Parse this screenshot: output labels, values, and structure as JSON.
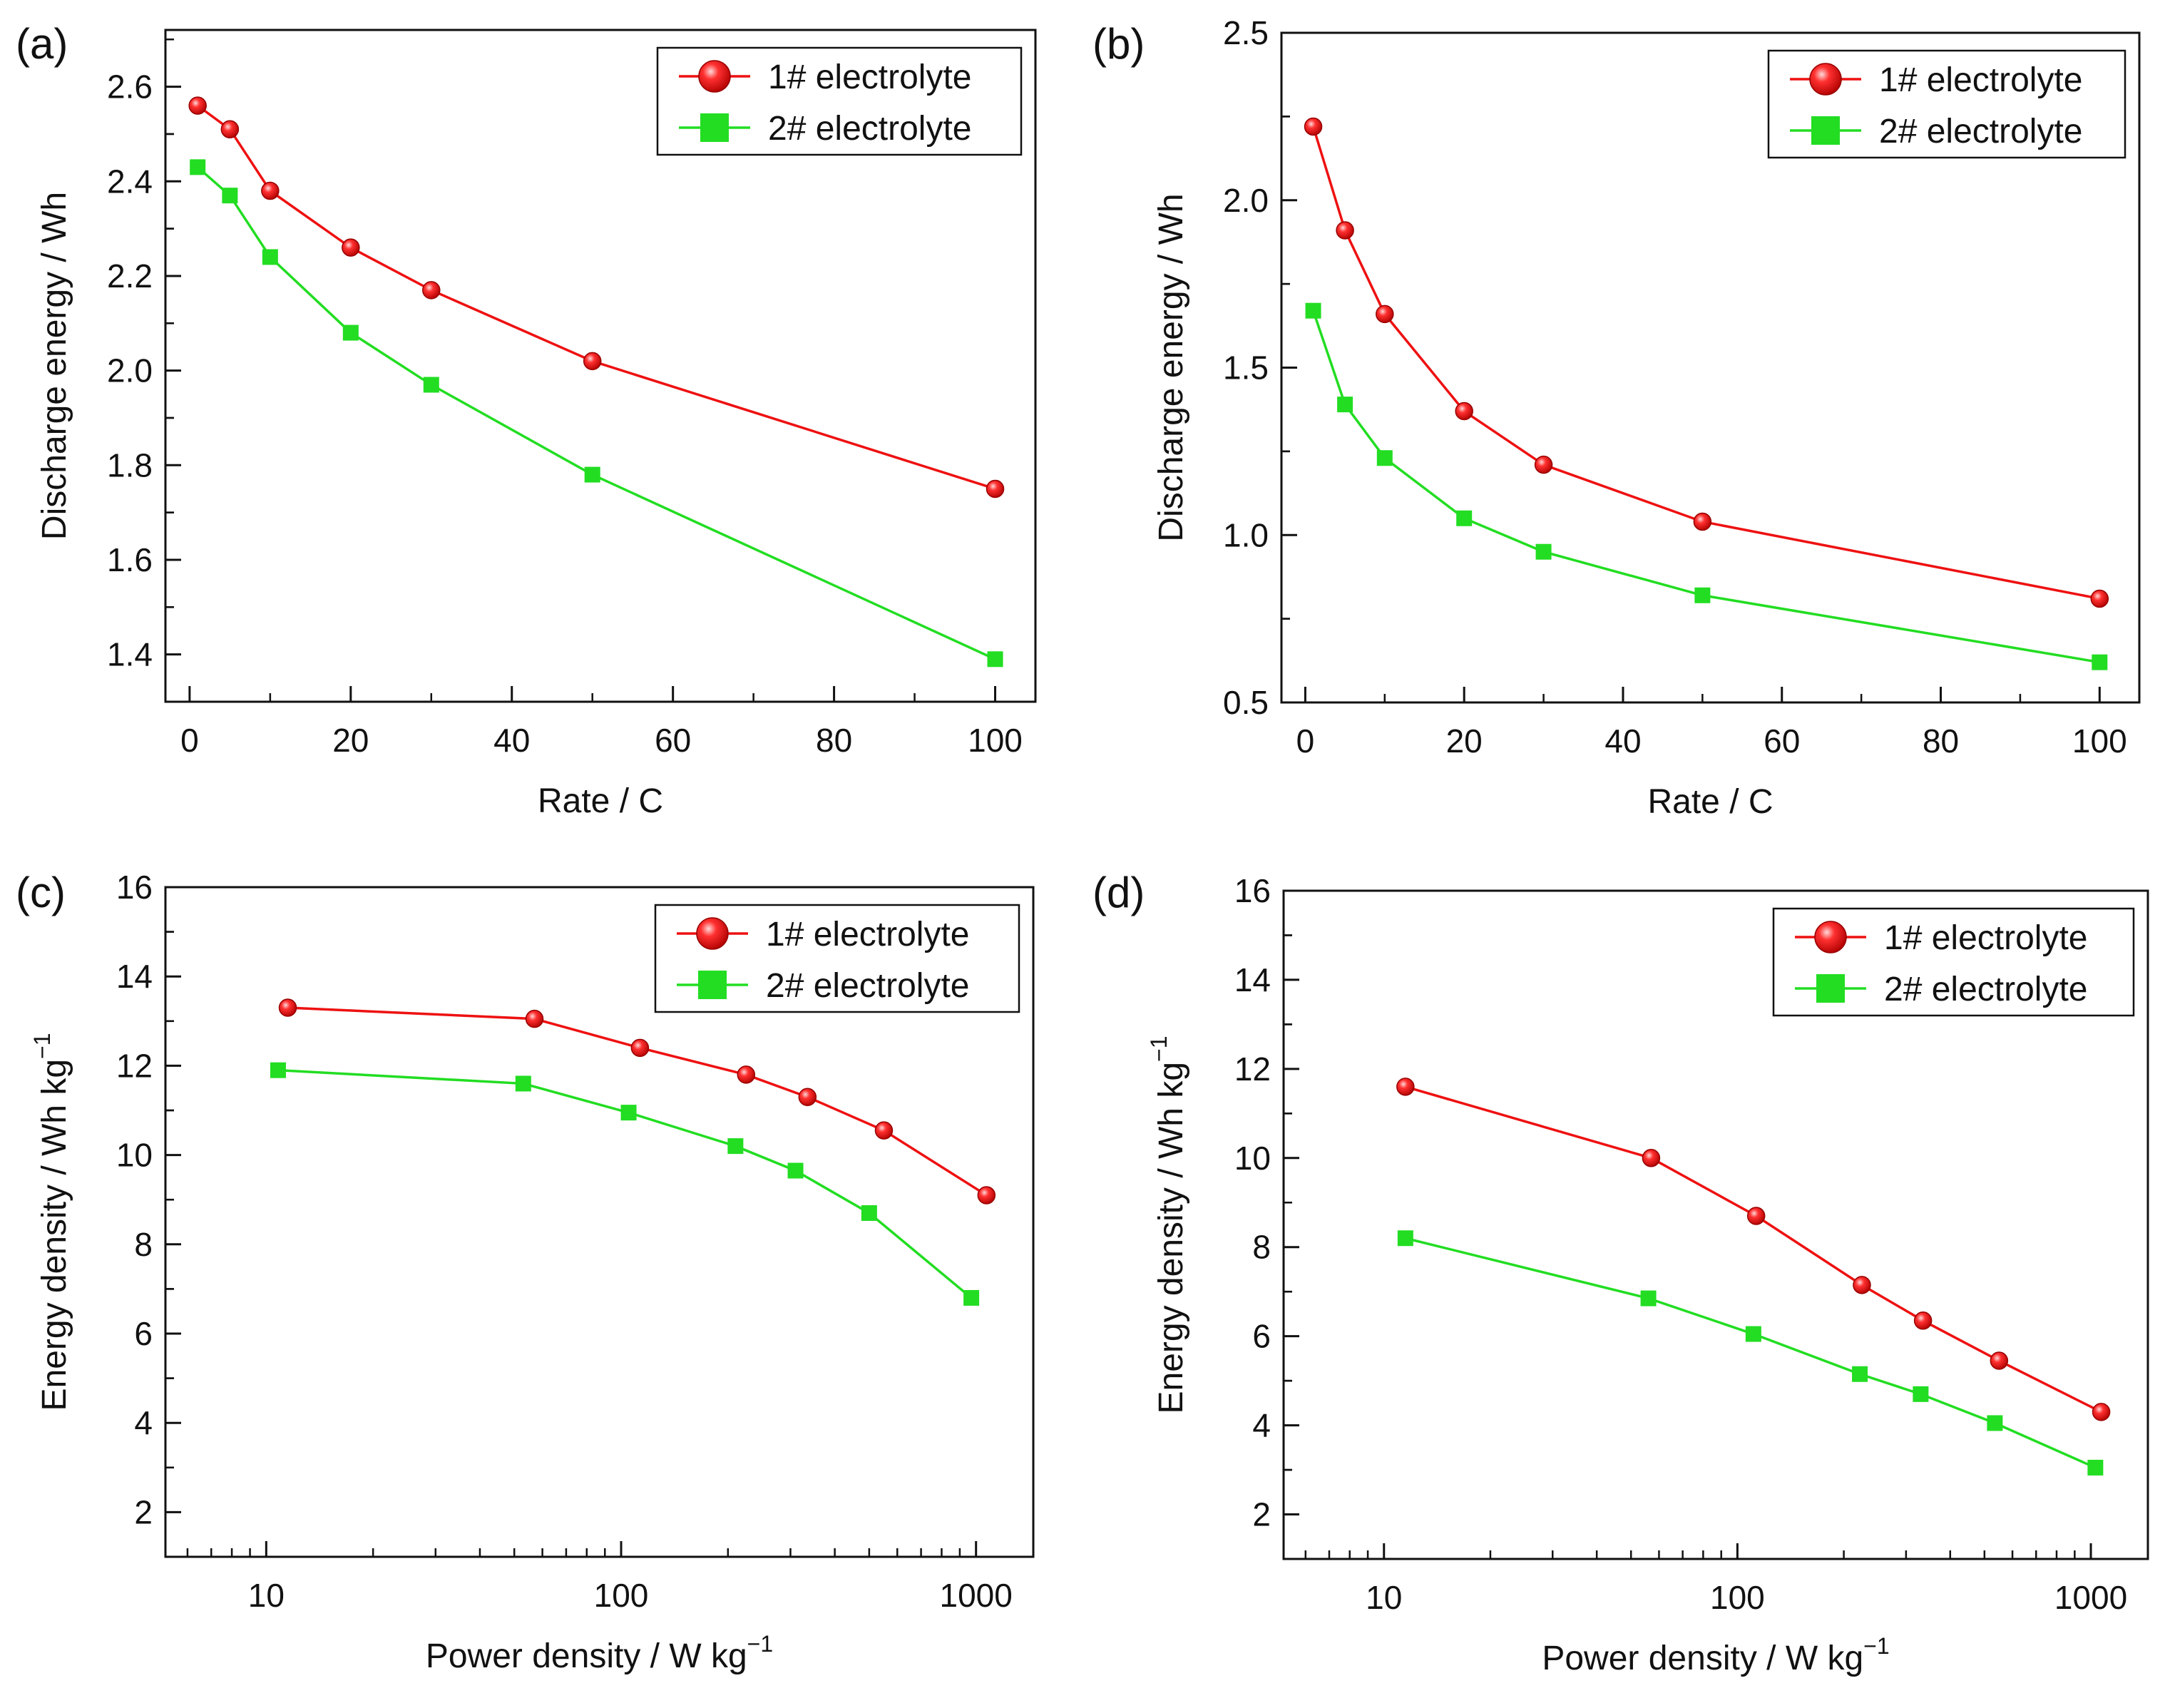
{
  "colors": {
    "series1": "#ee1111",
    "series2": "#22dd22",
    "axis": "#111111"
  },
  "chart_data": [
    {
      "panel_label": "(a)",
      "type": "line",
      "xscale": "linear",
      "xlabel": "Rate / C",
      "ylabel": "Discharge energy / Wh",
      "xlim": [
        -3,
        105
      ],
      "ylim": [
        1.3,
        2.72
      ],
      "xticks": [
        0,
        20,
        40,
        60,
        80,
        100
      ],
      "xtick_labels": [
        "0",
        "20",
        "40",
        "60",
        "80",
        "100"
      ],
      "yticks": [
        1.4,
        1.6,
        1.8,
        2.0,
        2.2,
        2.4,
        2.6
      ],
      "ytick_labels": [
        "1.4",
        "1.6",
        "1.8",
        "2.0",
        "2.2",
        "2.4",
        "2.6"
      ],
      "legend_position": "top-right",
      "series": [
        {
          "name": "1# electrolyte",
          "marker": "sphere",
          "x": [
            1,
            5,
            10,
            20,
            30,
            50,
            100
          ],
          "y": [
            2.56,
            2.51,
            2.38,
            2.26,
            2.17,
            2.02,
            1.75
          ]
        },
        {
          "name": "2# electrolyte",
          "marker": "square",
          "x": [
            1,
            5,
            10,
            20,
            30,
            50,
            100
          ],
          "y": [
            2.43,
            2.37,
            2.24,
            2.08,
            1.97,
            1.78,
            1.39
          ]
        }
      ]
    },
    {
      "panel_label": "(b)",
      "type": "line",
      "xscale": "linear",
      "xlabel": "Rate / C",
      "ylabel": "Discharge energy / Wh",
      "xlim": [
        -3,
        105
      ],
      "ylim": [
        0.5,
        2.5
      ],
      "xticks": [
        0,
        20,
        40,
        60,
        80,
        100
      ],
      "xtick_labels": [
        "0",
        "20",
        "40",
        "60",
        "80",
        "100"
      ],
      "yticks": [
        0.5,
        1.0,
        1.5,
        2.0,
        2.5
      ],
      "ytick_labels": [
        "0.5",
        "1.0",
        "1.5",
        "2.0",
        "2.5"
      ],
      "legend_position": "top-right",
      "series": [
        {
          "name": "1# electrolyte",
          "marker": "sphere",
          "x": [
            1,
            5,
            10,
            20,
            30,
            50,
            100
          ],
          "y": [
            2.22,
            1.91,
            1.66,
            1.37,
            1.21,
            1.04,
            0.81
          ]
        },
        {
          "name": "2# electrolyte",
          "marker": "square",
          "x": [
            1,
            5,
            10,
            20,
            30,
            50,
            100
          ],
          "y": [
            1.67,
            1.39,
            1.23,
            1.05,
            0.95,
            0.82,
            0.62
          ]
        }
      ]
    },
    {
      "panel_label": "(c)",
      "type": "line",
      "xscale": "log",
      "xlabel": "Power density / W kg",
      "xlabel_sup": "−1",
      "ylabel": "Energy density / Wh kg",
      "ylabel_sup": "−1",
      "xlim": [
        5.2,
        1450
      ],
      "ylim": [
        1,
        16
      ],
      "xticks": [
        10,
        100,
        1000
      ],
      "xtick_labels": [
        "10",
        "100",
        "1000"
      ],
      "yticks": [
        2,
        4,
        6,
        8,
        10,
        12,
        14,
        16
      ],
      "ytick_labels": [
        "2",
        "4",
        "6",
        "8",
        "10",
        "12",
        "14",
        "16"
      ],
      "legend_position": "top-right",
      "series": [
        {
          "name": "1# electrolyte",
          "marker": "sphere",
          "x": [
            11.5,
            57,
            113,
            225,
            335,
            550,
            1070
          ],
          "y": [
            13.3,
            13.05,
            12.4,
            11.8,
            11.3,
            10.55,
            9.1
          ]
        },
        {
          "name": "2# electrolyte",
          "marker": "square",
          "x": [
            10.8,
            53,
            105,
            210,
            310,
            500,
            970
          ],
          "y": [
            11.9,
            11.6,
            10.95,
            10.2,
            9.65,
            8.7,
            6.8
          ]
        }
      ]
    },
    {
      "panel_label": "(d)",
      "type": "line",
      "xscale": "log",
      "xlabel": "Power density / W kg",
      "xlabel_sup": "−1",
      "ylabel": "Energy density / Wh kg",
      "ylabel_sup": "−1",
      "xlim": [
        5.2,
        1450
      ],
      "ylim": [
        1,
        16
      ],
      "xticks": [
        10,
        100,
        1000
      ],
      "xtick_labels": [
        "10",
        "100",
        "1000"
      ],
      "yticks": [
        2,
        4,
        6,
        8,
        10,
        12,
        14,
        16
      ],
      "ytick_labels": [
        "2",
        "4",
        "6",
        "8",
        "10",
        "12",
        "14",
        "16"
      ],
      "legend_position": "top-right",
      "series": [
        {
          "name": "1# electrolyte",
          "marker": "sphere",
          "x": [
            11.5,
            57,
            113,
            225,
            335,
            550,
            1070
          ],
          "y": [
            11.6,
            10.0,
            8.7,
            7.15,
            6.35,
            5.45,
            4.3
          ]
        },
        {
          "name": "2# electrolyte",
          "marker": "square",
          "x": [
            11.5,
            56,
            111,
            222,
            330,
            535,
            1030
          ],
          "y": [
            8.2,
            6.85,
            6.05,
            5.15,
            4.7,
            4.05,
            3.05
          ]
        }
      ]
    }
  ]
}
